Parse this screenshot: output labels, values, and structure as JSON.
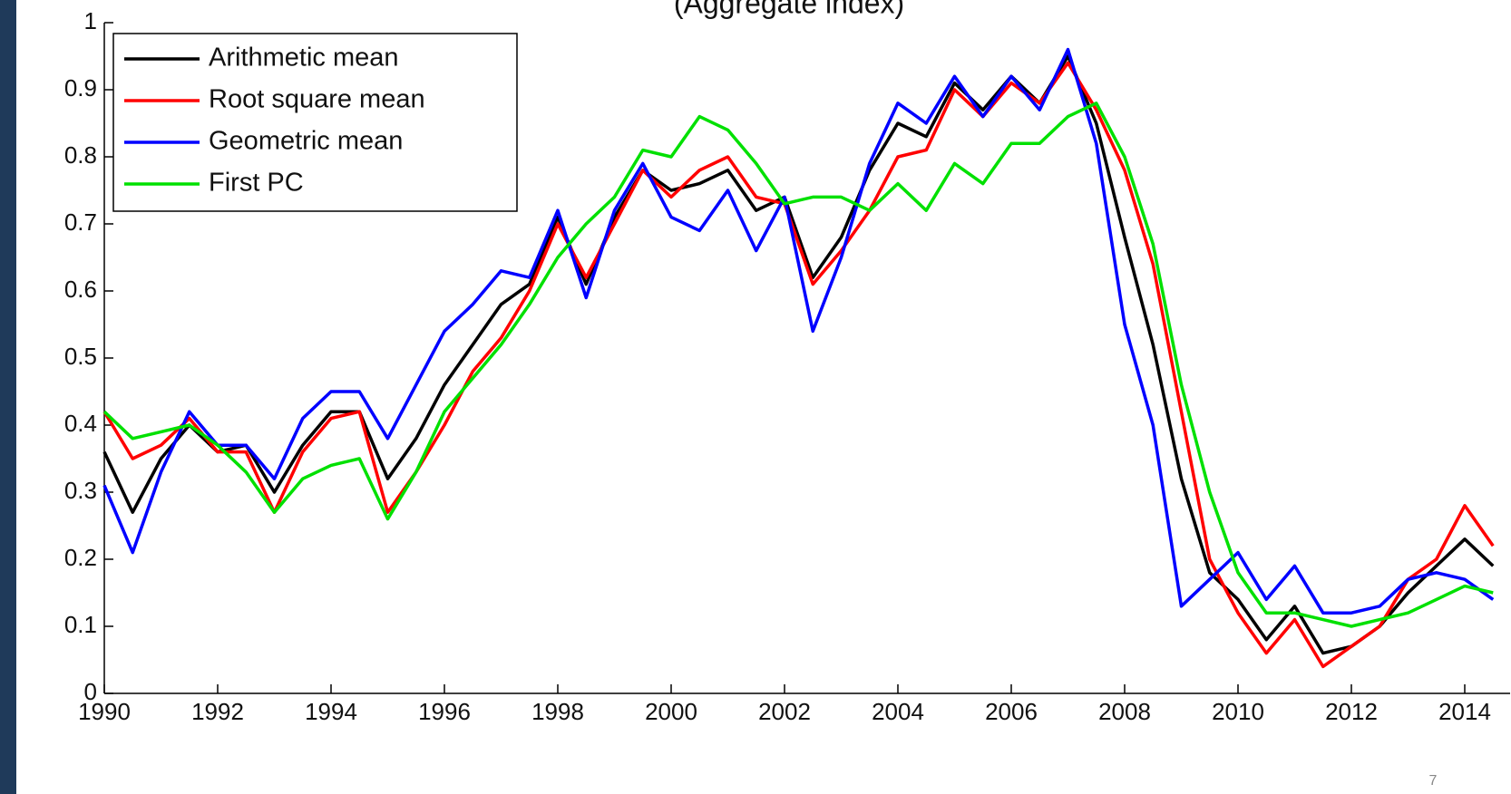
{
  "chart_data": {
    "type": "line",
    "title": "(Aggregate index)",
    "x": [
      1990,
      1990.5,
      1991,
      1991.5,
      1992,
      1992.5,
      1993,
      1993.5,
      1994,
      1994.5,
      1995,
      1995.5,
      1996,
      1996.5,
      1997,
      1997.5,
      1998,
      1998.5,
      1999,
      1999.5,
      2000,
      2000.5,
      2001,
      2001.5,
      2002,
      2002.5,
      2003,
      2003.5,
      2004,
      2004.5,
      2005,
      2005.5,
      2006,
      2006.5,
      2007,
      2007.5,
      2008,
      2008.5,
      2009,
      2009.5,
      2010,
      2010.5,
      2011,
      2011.5,
      2012,
      2012.5,
      2013,
      2013.5,
      2014,
      2014.5
    ],
    "series": [
      {
        "name": "Arithmetic mean",
        "color": "#000000",
        "values": [
          0.36,
          0.27,
          0.35,
          0.4,
          0.36,
          0.37,
          0.3,
          0.37,
          0.42,
          0.42,
          0.32,
          0.38,
          0.46,
          0.52,
          0.58,
          0.61,
          0.71,
          0.61,
          0.71,
          0.78,
          0.75,
          0.76,
          0.78,
          0.72,
          0.74,
          0.62,
          0.68,
          0.78,
          0.85,
          0.83,
          0.91,
          0.87,
          0.92,
          0.88,
          0.95,
          0.85,
          0.68,
          0.52,
          0.32,
          0.18,
          0.14,
          0.08,
          0.13,
          0.06,
          0.07,
          0.1,
          0.15,
          0.19,
          0.23,
          0.19
        ]
      },
      {
        "name": "Root square mean",
        "color": "#ff0000",
        "values": [
          0.42,
          0.35,
          0.37,
          0.41,
          0.36,
          0.36,
          0.27,
          0.36,
          0.41,
          0.42,
          0.27,
          0.33,
          0.4,
          0.48,
          0.53,
          0.6,
          0.7,
          0.62,
          0.7,
          0.78,
          0.74,
          0.78,
          0.8,
          0.74,
          0.73,
          0.61,
          0.66,
          0.72,
          0.8,
          0.81,
          0.9,
          0.86,
          0.91,
          0.88,
          0.94,
          0.87,
          0.78,
          0.64,
          0.42,
          0.2,
          0.12,
          0.06,
          0.11,
          0.04,
          0.07,
          0.1,
          0.17,
          0.2,
          0.28,
          0.22
        ]
      },
      {
        "name": "Geometric mean",
        "color": "#0000ff",
        "values": [
          0.31,
          0.21,
          0.33,
          0.42,
          0.37,
          0.37,
          0.32,
          0.41,
          0.45,
          0.45,
          0.38,
          0.46,
          0.54,
          0.58,
          0.63,
          0.62,
          0.72,
          0.59,
          0.72,
          0.79,
          0.71,
          0.69,
          0.75,
          0.66,
          0.74,
          0.54,
          0.65,
          0.79,
          0.88,
          0.85,
          0.92,
          0.86,
          0.92,
          0.87,
          0.96,
          0.82,
          0.55,
          0.4,
          0.13,
          0.17,
          0.21,
          0.14,
          0.19,
          0.12,
          0.12,
          0.13,
          0.17,
          0.18,
          0.17,
          0.14
        ]
      },
      {
        "name": "First PC",
        "color": "#00e000",
        "values": [
          0.42,
          0.38,
          0.39,
          0.4,
          0.37,
          0.33,
          0.27,
          0.32,
          0.34,
          0.35,
          0.26,
          0.33,
          0.42,
          0.47,
          0.52,
          0.58,
          0.65,
          0.7,
          0.74,
          0.81,
          0.8,
          0.86,
          0.84,
          0.79,
          0.73,
          0.74,
          0.74,
          0.72,
          0.76,
          0.72,
          0.79,
          0.76,
          0.82,
          0.82,
          0.86,
          0.88,
          0.8,
          0.67,
          0.46,
          0.3,
          0.18,
          0.12,
          0.12,
          0.11,
          0.1,
          0.11,
          0.12,
          0.14,
          0.16,
          0.15
        ]
      }
    ],
    "xlim": [
      1990,
      2014.8
    ],
    "xticks": [
      1990,
      1992,
      1994,
      1996,
      1998,
      2000,
      2002,
      2004,
      2006,
      2008,
      2010,
      2012,
      2014
    ],
    "ylim": [
      0,
      1
    ],
    "yticks": [
      0,
      0.1,
      0.2,
      0.3,
      0.4,
      0.5,
      0.6,
      0.7,
      0.8,
      0.9,
      1
    ],
    "grid": false,
    "legend": "upper left"
  },
  "slide": {
    "page_number": "7"
  }
}
